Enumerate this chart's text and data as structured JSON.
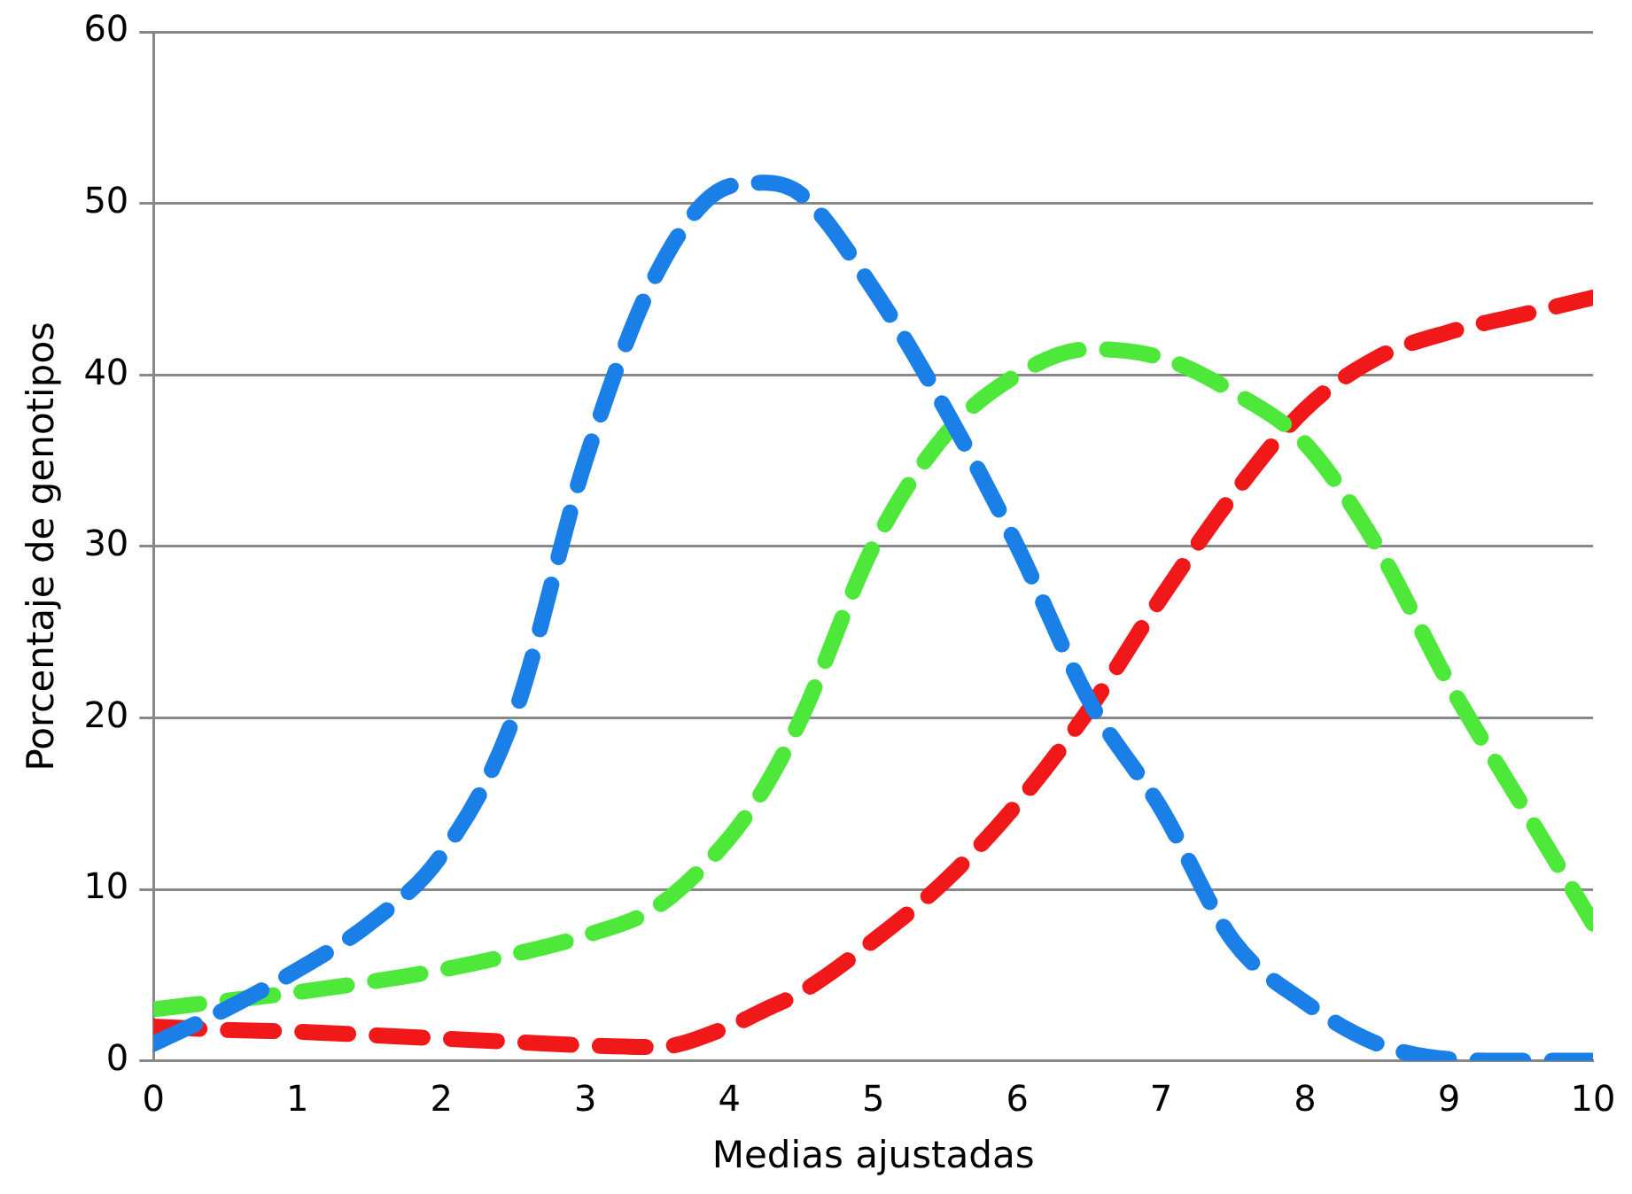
{
  "chart_data": {
    "type": "line",
    "xlabel": "Medias ajustadas",
    "ylabel": "Porcentaje de genotipos",
    "x": [
      0,
      0.5,
      1,
      1.5,
      2,
      2.5,
      3,
      3.5,
      4,
      4.25,
      4.5,
      5,
      5.5,
      6,
      6.5,
      7,
      7.5,
      8,
      8.5,
      9,
      9.5,
      10
    ],
    "series": [
      {
        "color": "#1a7fe6",
        "values": [
          1,
          3,
          5.3,
          8,
          12,
          20,
          35,
          46,
          51,
          51.2,
          50.5,
          45,
          38,
          30,
          21,
          14.7,
          7,
          3.4,
          1,
          0.1,
          0,
          0
        ]
      },
      {
        "color": "#4de83a",
        "values": [
          3,
          3.5,
          4,
          4.6,
          5.3,
          6.2,
          7.3,
          9,
          13,
          16,
          20,
          30,
          36.5,
          40,
          41.5,
          41,
          39,
          36,
          30,
          22,
          15,
          8
        ]
      },
      {
        "color": "#f01818",
        "values": [
          2,
          1.8,
          1.7,
          1.5,
          1.3,
          1.1,
          0.9,
          0.8,
          2,
          3,
          4,
          7,
          10.5,
          15,
          20.5,
          27,
          33,
          38,
          41,
          42.5,
          43.5,
          44.5
        ]
      }
    ],
    "xlim": [
      0,
      10
    ],
    "xticks": [
      0,
      1,
      2,
      3,
      4,
      5,
      6,
      7,
      8,
      9,
      10
    ],
    "ylim": [
      0,
      60
    ],
    "yticks": [
      0,
      10,
      20,
      30,
      40,
      50,
      60
    ],
    "grid": "y",
    "legend": false,
    "marker": "none",
    "line_style": "dashed"
  }
}
